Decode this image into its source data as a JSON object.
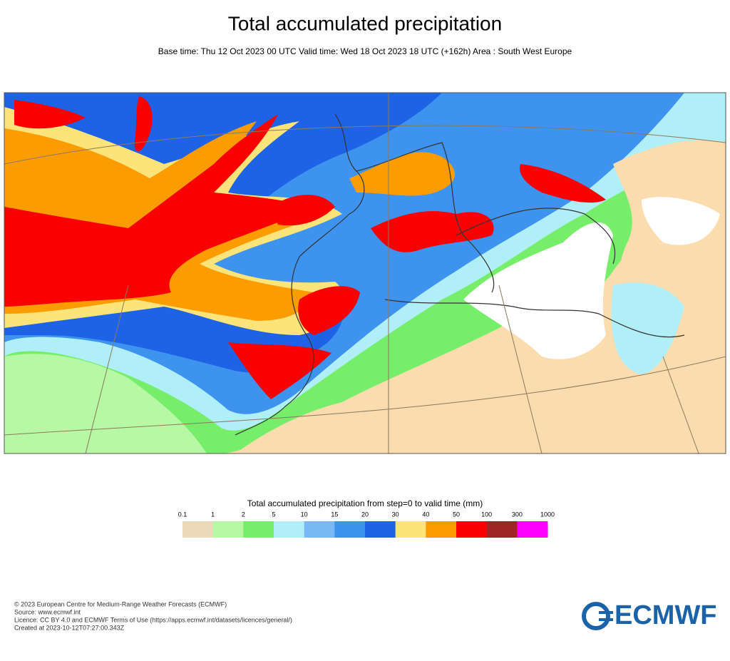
{
  "header": {
    "title": "Total accumulated precipitation",
    "subtitle": "Base time: Thu 12 Oct 2023 00 UTC Valid time: Wed 18 Oct 2023 18 UTC (+162h) Area : South West Europe"
  },
  "legend": {
    "title": "Total accumulated precipitation from step=0 to valid time (mm)",
    "ticks": [
      0.1,
      1,
      2,
      5,
      10,
      15,
      20,
      30,
      40,
      50,
      100,
      300,
      1000
    ],
    "colors": [
      "#ecd9b9",
      "#b6f8a4",
      "#76ee6a",
      "#b0eff8",
      "#7ab8f5",
      "#3e93ef",
      "#1e63e6",
      "#fde47a",
      "#fd9c00",
      "#fb0000",
      "#a02424",
      "#fd00fd"
    ]
  },
  "footer": {
    "lines": [
      "© 2023 European Centre for Medium-Range Weather Forecasts (ECMWF)",
      "Source: www.ecmwf.int",
      "Licence: CC BY 4.0 and ECMWF Terms of Use (https://apps.ecmwf.int/datasets/licences/general/)",
      "Created at 2023-10-12T07:27:00.343Z"
    ],
    "logo": "ECMWF"
  }
}
